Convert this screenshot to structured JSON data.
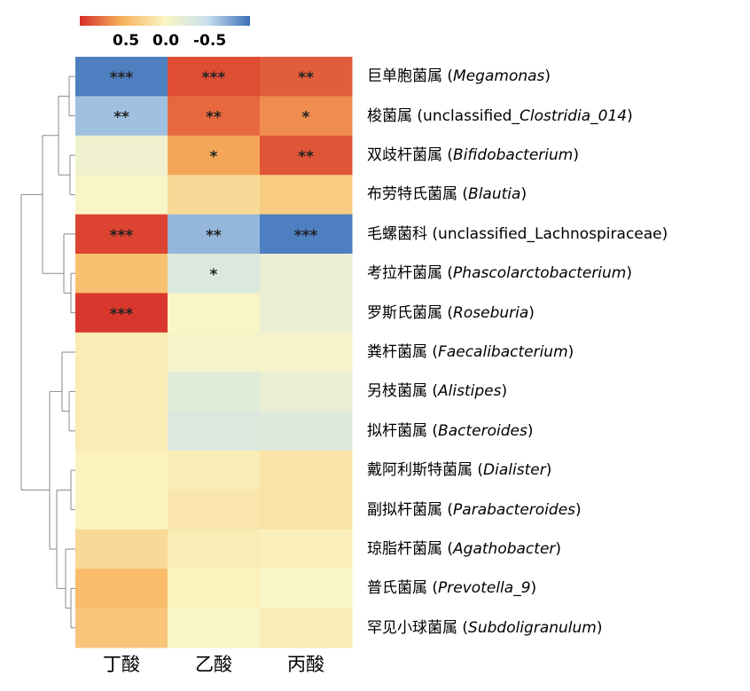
{
  "chart_data": {
    "type": "heatmap",
    "legend": {
      "colors": [
        "#d7302a",
        "#f7b25c",
        "#fbf6c4",
        "#c9e0ee",
        "#3a6fb8"
      ],
      "ticks": [
        "0.5",
        "0.0",
        "-0.5"
      ]
    },
    "columns": [
      "丁酸",
      "乙酸",
      "丙酸"
    ],
    "rows": [
      {
        "cn": "巨单胞菌属",
        "en_pre": "",
        "en_it": "Megamonas"
      },
      {
        "cn": "梭菌属",
        "en_pre": "unclassified_",
        "en_it": "Clostridia_014"
      },
      {
        "cn": "双歧杆菌属",
        "en_pre": "",
        "en_it": "Bifidobacterium"
      },
      {
        "cn": "布劳特氏菌属",
        "en_pre": "",
        "en_it": "Blautia"
      },
      {
        "cn": "毛螺菌科",
        "en_pre": "unclassified_Lachnospiraceae",
        "en_it": ""
      },
      {
        "cn": "考拉杆菌属",
        "en_pre": "",
        "en_it": "Phascolarctobacterium"
      },
      {
        "cn": "罗斯氏菌属",
        "en_pre": "",
        "en_it": "Roseburia"
      },
      {
        "cn": "粪杆菌属",
        "en_pre": "",
        "en_it": "Faecalibacterium"
      },
      {
        "cn": "另枝菌属",
        "en_pre": "",
        "en_it": "Alistipes"
      },
      {
        "cn": "拟杆菌属",
        "en_pre": "",
        "en_it": "Bacteroides"
      },
      {
        "cn": "戴阿利斯特菌属",
        "en_pre": "",
        "en_it": "Dialister"
      },
      {
        "cn": "副拟杆菌属",
        "en_pre": "",
        "en_it": "Parabacteroides"
      },
      {
        "cn": "琼脂杆菌属",
        "en_pre": "",
        "en_it": "Agathobacter"
      },
      {
        "cn": "普氏菌属",
        "en_pre": "",
        "en_it": "Prevotella_9"
      },
      {
        "cn": "罕见小球菌属",
        "en_pre": "",
        "en_it": "Subdoligranulum"
      }
    ],
    "values": [
      [
        -0.65,
        0.62,
        0.58
      ],
      [
        -0.45,
        0.55,
        0.45
      ],
      [
        -0.08,
        0.38,
        0.6
      ],
      [
        -0.02,
        0.15,
        0.22
      ],
      [
        0.65,
        -0.48,
        -0.65
      ],
      [
        0.28,
        -0.22,
        -0.12
      ],
      [
        0.68,
        -0.02,
        -0.12
      ],
      [
        0.05,
        -0.04,
        -0.05
      ],
      [
        0.05,
        -0.18,
        -0.12
      ],
      [
        0.05,
        -0.22,
        -0.2
      ],
      [
        0.02,
        0.05,
        0.1
      ],
      [
        0.02,
        0.08,
        0.1
      ],
      [
        0.15,
        0.05,
        0.03
      ],
      [
        0.3,
        0.02,
        -0.02
      ],
      [
        0.25,
        -0.02,
        0.05
      ]
    ],
    "significance": [
      [
        "***",
        "***",
        "**"
      ],
      [
        "**",
        "**",
        "*"
      ],
      [
        "",
        "*",
        "**"
      ],
      [
        "",
        "",
        ""
      ],
      [
        "***",
        "**",
        "***"
      ],
      [
        "",
        "*",
        ""
      ],
      [
        "***",
        "",
        ""
      ],
      [
        "",
        "",
        ""
      ],
      [
        "",
        "",
        ""
      ],
      [
        "",
        "",
        ""
      ],
      [
        "",
        "",
        ""
      ],
      [
        "",
        "",
        ""
      ],
      [
        "",
        "",
        ""
      ],
      [
        "",
        "",
        ""
      ],
      [
        "",
        "",
        ""
      ]
    ],
    "value_range": [
      -0.7,
      0.7
    ],
    "row_dendrogram": true,
    "legend_placement": "top-left"
  }
}
